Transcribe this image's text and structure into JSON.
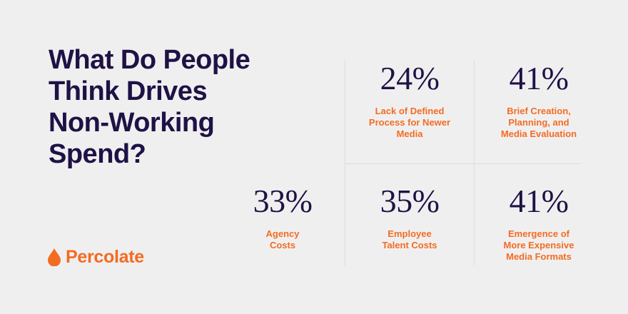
{
  "headline": {
    "lines": [
      "What Do People",
      "Think Drives",
      "Non-Working",
      "Spend?"
    ]
  },
  "brand": {
    "name": "Percolate",
    "icon": "droplet-icon",
    "color": "#f36c21"
  },
  "colors": {
    "background": "#f0eff0",
    "text_dark": "#1f1245",
    "accent": "#f36c21",
    "divider": "#dcdadd"
  },
  "stats": [
    {
      "value": "24%",
      "label_lines": [
        "Lack of Defined",
        "Process for Newer",
        "Media"
      ]
    },
    {
      "value": "41%",
      "label_lines": [
        "Brief Creation,",
        "Planning, and",
        "Media Evaluation"
      ]
    },
    {
      "value": "33%",
      "label_lines": [
        "Agency",
        "Costs"
      ]
    },
    {
      "value": "35%",
      "label_lines": [
        "Employee",
        "Talent Costs"
      ]
    },
    {
      "value": "41%",
      "label_lines": [
        "Emergence of",
        "More Expensive",
        "Media Formats"
      ]
    }
  ]
}
